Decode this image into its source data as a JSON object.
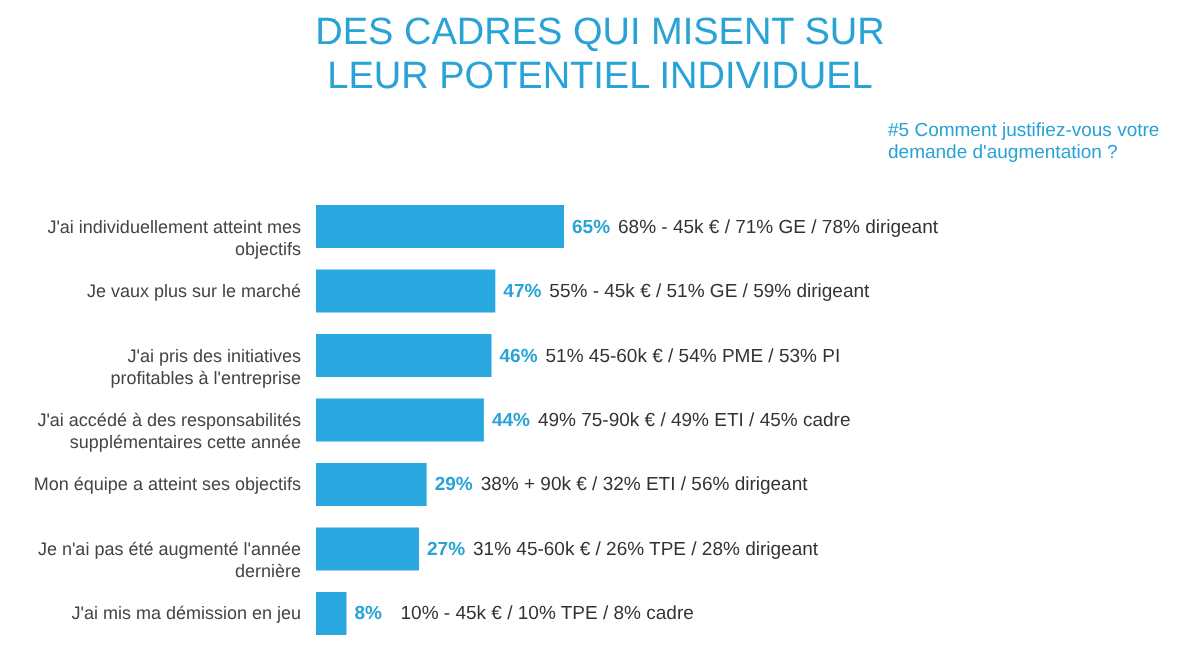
{
  "chart_data": {
    "type": "bar",
    "orientation": "horizontal",
    "title": "DES CADRES QUI MISENT SUR LEUR POTENTIEL INDIVIDUEL",
    "subtitle": "#5 Comment justifiez-vous votre demande d'augmentation ?",
    "categories": [
      "J'ai individuellement atteint mes objectifs",
      "Je vaux plus sur le marché",
      "J'ai pris des initiatives profitables à l'entreprise",
      "J'ai accédé à des responsabilités supplémentaires cette année",
      "Mon équipe a atteint ses objectifs",
      "Je n'ai pas été augmenté l'année dernière",
      "J'ai mis ma démission en jeu"
    ],
    "values": [
      65,
      47,
      46,
      44,
      29,
      27,
      8
    ],
    "value_labels": [
      "65%",
      "47%",
      "46%",
      "44%",
      "29%",
      "27%",
      "8%"
    ],
    "color": "#29a8e0",
    "annotations": [
      {
        "text": "68% - 45k € / 71% GE / 78% dirigeant",
        "x": 65,
        "y": "J'ai individuellement atteint mes objectifs"
      },
      {
        "text": "55% - 45k € / 51% GE / 59% dirigeant",
        "x": 47,
        "y": "Je vaux plus sur le marché"
      },
      {
        "text": "51%  45-60k € / 54% PME / 53% PI",
        "x": 46,
        "y": "J'ai pris des initiatives profitables à l'entreprise"
      },
      {
        "text": "49%  75-90k € / 49% ETI / 45% cadre",
        "x": 44,
        "y": "J'ai accédé à des responsabilités supplémentaires cette année"
      },
      {
        "text": "38%  + 90k € / 32% ETI / 56% dirigeant",
        "x": 29,
        "y": "Mon équipe a atteint ses objectifs"
      },
      {
        "text": "31%  45-60k € / 26% TPE / 28% dirigeant",
        "x": 27,
        "y": "Je n'ai pas été augmenté l'année dernière"
      },
      {
        "text": "10%  - 45k € / 10% TPE / 8% cadre",
        "x": 8,
        "y": "J'ai mis ma démission en jeu"
      }
    ]
  }
}
